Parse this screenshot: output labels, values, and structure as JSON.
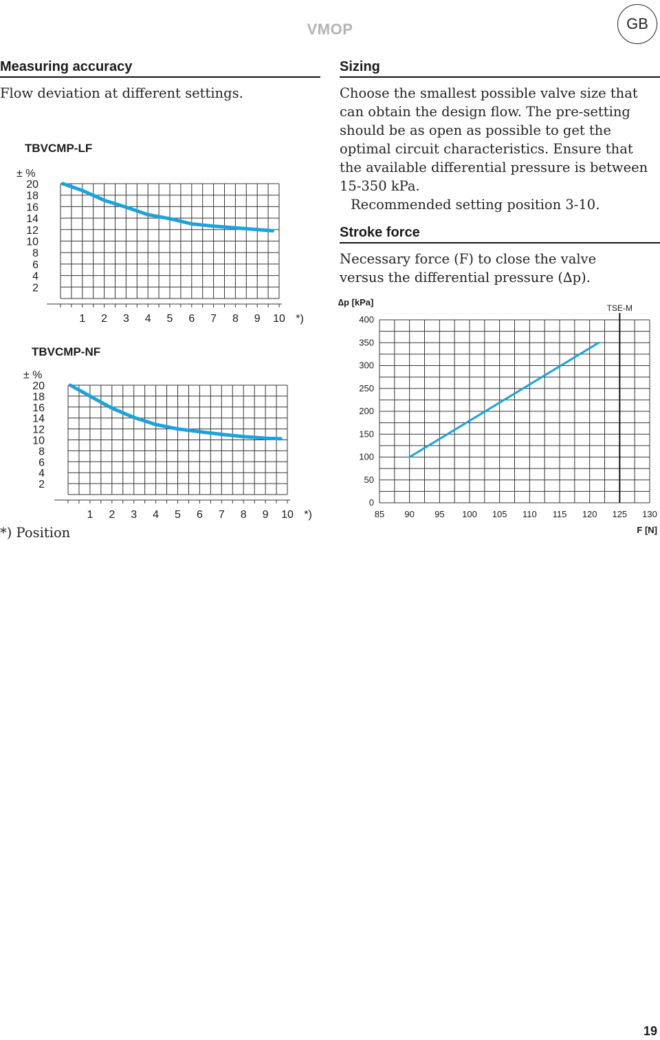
{
  "header": {
    "title": "VMOP",
    "lang_badge": "GB"
  },
  "left": {
    "heading": "Measuring accuracy",
    "text": "Flow deviation at different settings.",
    "footnote": "*) Position"
  },
  "right": {
    "sizing_heading": "Sizing",
    "sizing_lines": [
      "Choose the smallest possible valve size that",
      "can obtain the design flow. The pre-setting",
      "should be as open as possible to get the",
      "optimal circuit characteristics. Ensure that",
      "the available differential pressure is between",
      "15-350 kPa."
    ],
    "recommended": "Recommended setting position 3-10.",
    "stroke_heading": "Stroke force",
    "stroke_lines": [
      "Necessary force (F) to close the valve",
      "versus the differential pressure (∆p)."
    ]
  },
  "colors": {
    "curve": "#1aa3dc",
    "grid": "#333333",
    "header_gray": "#b3b3b3"
  },
  "chart_data": [
    {
      "type": "line",
      "title": "TBVCMP-LF",
      "ylabel": "± %",
      "y_ticks": [
        20,
        18,
        16,
        14,
        12,
        10,
        8,
        6,
        4,
        2
      ],
      "x_ticks": [
        "1",
        "2",
        "3",
        "4",
        "5",
        "6",
        "7",
        "8",
        "9",
        "10"
      ],
      "x_suffix": "*)",
      "xlim": [
        0,
        10
      ],
      "ylim": [
        0,
        20
      ],
      "grid": true,
      "series": [
        {
          "x": [
            0.1,
            1,
            2,
            3,
            4,
            5,
            6,
            7,
            8,
            9,
            9.7
          ],
          "y": [
            20,
            18.8,
            17.1,
            15.9,
            14.6,
            13.9,
            13.0,
            12.6,
            12.3,
            12.0,
            11.8
          ]
        }
      ]
    },
    {
      "type": "line",
      "title": "TBVCMP-NF",
      "ylabel": "± %",
      "y_ticks": [
        20,
        18,
        16,
        14,
        12,
        10,
        8,
        6,
        4,
        2
      ],
      "x_ticks": [
        "1",
        "2",
        "3",
        "4",
        "5",
        "6",
        "7",
        "8",
        "9",
        "10"
      ],
      "x_suffix": "*)",
      "xlim": [
        0,
        10
      ],
      "ylim": [
        0,
        20
      ],
      "grid": true,
      "series": [
        {
          "x": [
            0.1,
            1,
            2,
            3,
            4,
            5,
            6,
            7,
            8,
            9,
            9.7
          ],
          "y": [
            20,
            18.0,
            15.8,
            14.1,
            12.8,
            12.0,
            11.5,
            11.0,
            10.6,
            10.3,
            10.2
          ]
        }
      ]
    },
    {
      "type": "line",
      "ylabel": "∆p [kPa]",
      "xlabel": "F [N]",
      "x_ticks": [
        85,
        90,
        95,
        100,
        105,
        110,
        115,
        120,
        125,
        130
      ],
      "y_ticks": [
        0,
        50,
        100,
        150,
        200,
        250,
        300,
        350,
        400
      ],
      "xlim": [
        85,
        130
      ],
      "ylim": [
        0,
        400
      ],
      "grid": true,
      "marker": {
        "label": "TSE-M",
        "x": 125
      },
      "series": [
        {
          "x": [
            90,
            121.5
          ],
          "y": [
            100,
            350
          ]
        }
      ]
    }
  ]
}
